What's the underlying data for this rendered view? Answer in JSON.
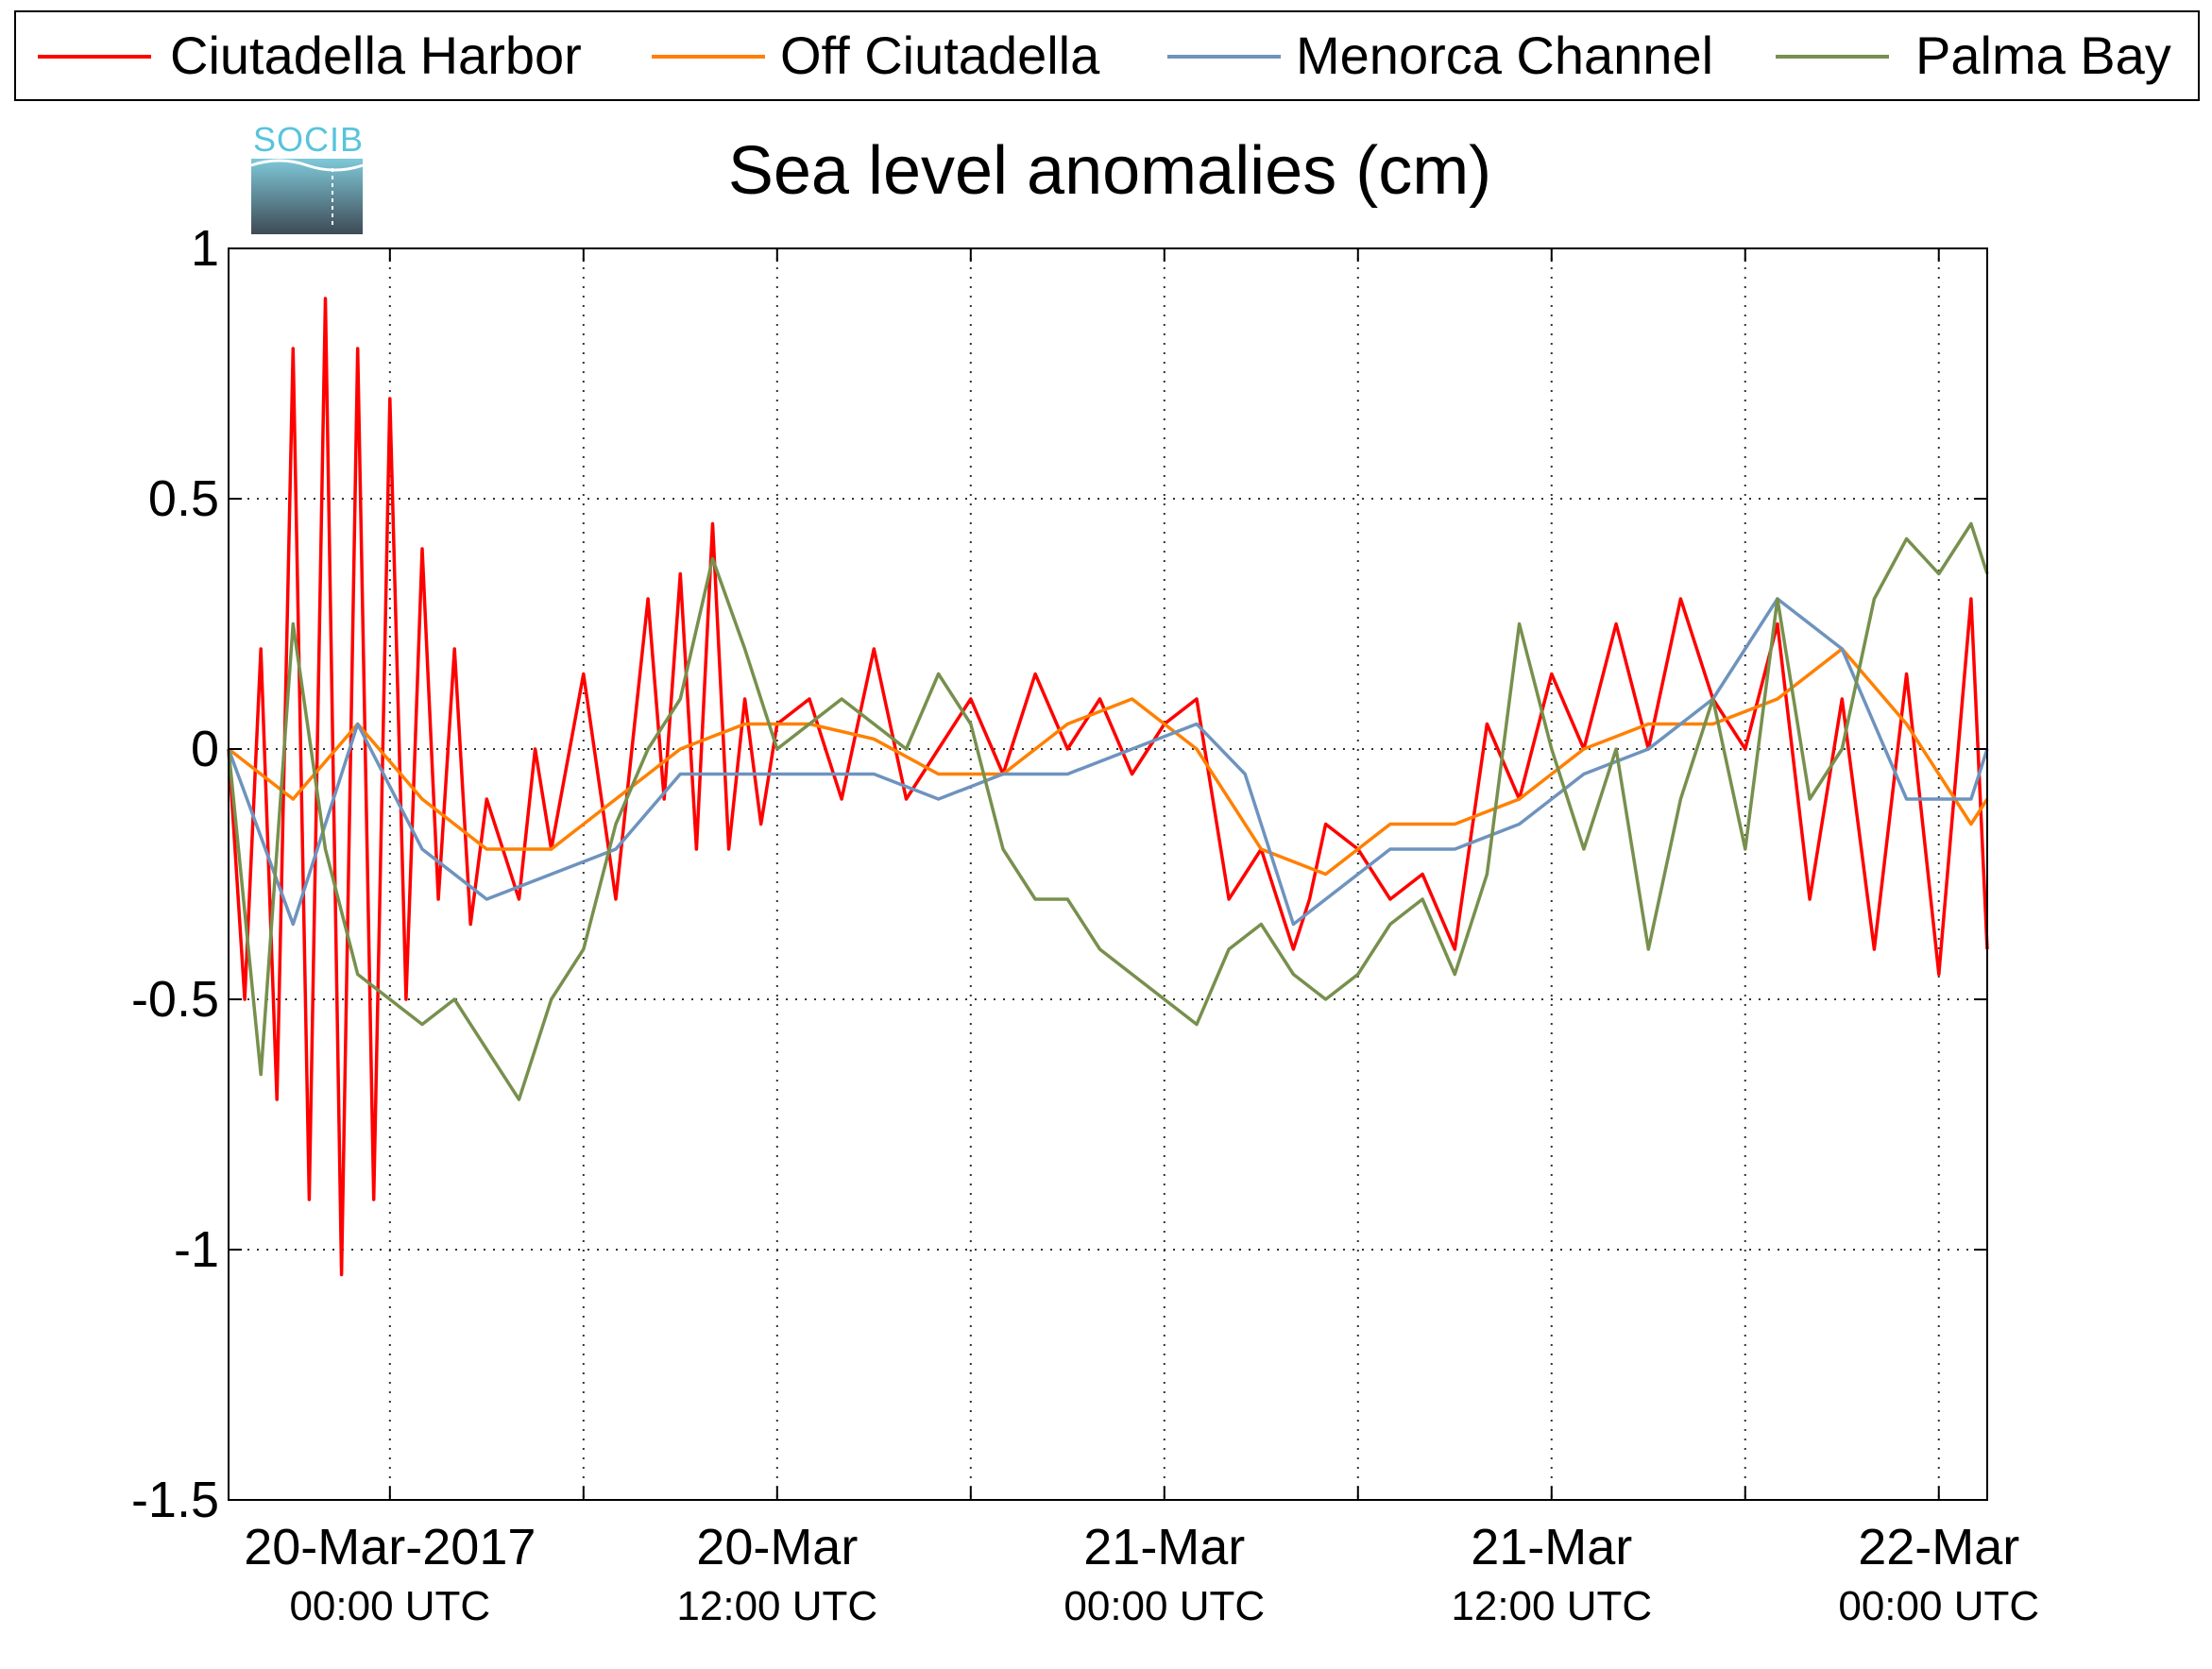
{
  "logo": {
    "text": "SOCIB"
  },
  "chart_data": {
    "type": "line",
    "title": "Sea level anomalies (cm)",
    "xlabel": "",
    "ylabel": "",
    "ylim": [
      -1.5,
      1
    ],
    "xlim": [
      "2017-03-19T19:00",
      "2017-03-22T01:30"
    ],
    "grid": true,
    "legend_position": "top",
    "y_ticks": [
      "1",
      "0.5",
      "0",
      "-0.5",
      "-1",
      "-1.5"
    ],
    "x_tick_labels": [
      {
        "at": "2017-03-20T00:00",
        "line1": "20-Mar-2017",
        "line2": "00:00 UTC"
      },
      {
        "at": "2017-03-20T12:00",
        "line1": "20-Mar",
        "line2": "12:00 UTC"
      },
      {
        "at": "2017-03-21T00:00",
        "line1": "21-Mar",
        "line2": "00:00 UTC"
      },
      {
        "at": "2017-03-21T12:00",
        "line1": "21-Mar",
        "line2": "12:00 UTC"
      },
      {
        "at": "2017-03-22T00:00",
        "line1": "22-Mar",
        "line2": "00:00 UTC"
      }
    ],
    "x_minor_ticks": [
      "2017-03-20T06:00",
      "2017-03-20T18:00",
      "2017-03-21T06:00",
      "2017-03-21T18:00"
    ],
    "series": [
      {
        "name": "Ciutadella Harbor",
        "color": "#ff0000",
        "x": [
          "2017-03-19T19:00",
          "2017-03-19T19:30",
          "2017-03-19T20:00",
          "2017-03-19T20:30",
          "2017-03-19T21:00",
          "2017-03-19T21:30",
          "2017-03-19T22:00",
          "2017-03-19T22:30",
          "2017-03-19T23:00",
          "2017-03-19T23:30",
          "2017-03-20T00:00",
          "2017-03-20T00:30",
          "2017-03-20T01:00",
          "2017-03-20T01:30",
          "2017-03-20T02:00",
          "2017-03-20T02:30",
          "2017-03-20T03:00",
          "2017-03-20T03:30",
          "2017-03-20T04:00",
          "2017-03-20T04:30",
          "2017-03-20T05:00",
          "2017-03-20T06:00",
          "2017-03-20T07:00",
          "2017-03-20T08:00",
          "2017-03-20T08:30",
          "2017-03-20T09:00",
          "2017-03-20T09:30",
          "2017-03-20T10:00",
          "2017-03-20T10:30",
          "2017-03-20T11:00",
          "2017-03-20T11:30",
          "2017-03-20T12:00",
          "2017-03-20T13:00",
          "2017-03-20T14:00",
          "2017-03-20T15:00",
          "2017-03-20T16:00",
          "2017-03-20T17:00",
          "2017-03-20T18:00",
          "2017-03-20T19:00",
          "2017-03-20T20:00",
          "2017-03-20T21:00",
          "2017-03-20T22:00",
          "2017-03-20T23:00",
          "2017-03-21T00:00",
          "2017-03-21T01:00",
          "2017-03-21T02:00",
          "2017-03-21T03:00",
          "2017-03-21T04:00",
          "2017-03-21T04:30",
          "2017-03-21T05:00",
          "2017-03-21T06:00",
          "2017-03-21T07:00",
          "2017-03-21T08:00",
          "2017-03-21T09:00",
          "2017-03-21T10:00",
          "2017-03-21T11:00",
          "2017-03-21T12:00",
          "2017-03-21T13:00",
          "2017-03-21T14:00",
          "2017-03-21T15:00",
          "2017-03-21T16:00",
          "2017-03-21T17:00",
          "2017-03-21T18:00",
          "2017-03-21T19:00",
          "2017-03-21T20:00",
          "2017-03-21T21:00",
          "2017-03-21T22:00",
          "2017-03-21T23:00",
          "2017-03-22T00:00",
          "2017-03-22T01:00",
          "2017-03-22T01:30"
        ],
        "y": [
          0.0,
          -0.5,
          0.2,
          -0.7,
          0.8,
          -0.9,
          0.9,
          -1.05,
          0.8,
          -0.9,
          0.7,
          -0.5,
          0.4,
          -0.3,
          0.2,
          -0.35,
          -0.1,
          -0.2,
          -0.3,
          0.0,
          -0.2,
          0.15,
          -0.3,
          0.3,
          -0.1,
          0.35,
          -0.2,
          0.45,
          -0.2,
          0.1,
          -0.15,
          0.05,
          0.1,
          -0.1,
          0.2,
          -0.1,
          0.0,
          0.1,
          -0.05,
          0.15,
          0.0,
          0.1,
          -0.05,
          0.05,
          0.1,
          -0.3,
          -0.2,
          -0.4,
          -0.3,
          -0.15,
          -0.2,
          -0.3,
          -0.25,
          -0.4,
          0.05,
          -0.1,
          0.15,
          0.0,
          0.25,
          0.0,
          0.3,
          0.1,
          0.0,
          0.25,
          -0.3,
          0.1,
          -0.4,
          0.15,
          -0.45,
          0.3,
          -0.4
        ]
      },
      {
        "name": "Off Ciutadella",
        "color": "#ff8000",
        "x": [
          "2017-03-19T19:00",
          "2017-03-19T21:00",
          "2017-03-19T23:00",
          "2017-03-20T01:00",
          "2017-03-20T03:00",
          "2017-03-20T05:00",
          "2017-03-20T07:00",
          "2017-03-20T09:00",
          "2017-03-20T11:00",
          "2017-03-20T13:00",
          "2017-03-20T15:00",
          "2017-03-20T17:00",
          "2017-03-20T19:00",
          "2017-03-20T21:00",
          "2017-03-20T23:00",
          "2017-03-21T01:00",
          "2017-03-21T03:00",
          "2017-03-21T05:00",
          "2017-03-21T07:00",
          "2017-03-21T09:00",
          "2017-03-21T11:00",
          "2017-03-21T13:00",
          "2017-03-21T15:00",
          "2017-03-21T17:00",
          "2017-03-21T19:00",
          "2017-03-21T21:00",
          "2017-03-21T23:00",
          "2017-03-22T01:00",
          "2017-03-22T01:30"
        ],
        "y": [
          0.0,
          -0.1,
          0.05,
          -0.1,
          -0.2,
          -0.2,
          -0.1,
          0.0,
          0.05,
          0.05,
          0.02,
          -0.05,
          -0.05,
          0.05,
          0.1,
          0.0,
          -0.2,
          -0.25,
          -0.15,
          -0.15,
          -0.1,
          0.0,
          0.05,
          0.05,
          0.1,
          0.2,
          0.05,
          -0.15,
          -0.1
        ]
      },
      {
        "name": "Menorca Channel",
        "color": "#6e93be",
        "x": [
          "2017-03-19T19:00",
          "2017-03-19T21:00",
          "2017-03-19T23:00",
          "2017-03-20T01:00",
          "2017-03-20T03:00",
          "2017-03-20T05:00",
          "2017-03-20T07:00",
          "2017-03-20T09:00",
          "2017-03-20T11:00",
          "2017-03-20T13:00",
          "2017-03-20T15:00",
          "2017-03-20T17:00",
          "2017-03-20T19:00",
          "2017-03-20T21:00",
          "2017-03-20T23:00",
          "2017-03-21T01:00",
          "2017-03-21T02:30",
          "2017-03-21T04:00",
          "2017-03-21T05:00",
          "2017-03-21T07:00",
          "2017-03-21T09:00",
          "2017-03-21T11:00",
          "2017-03-21T13:00",
          "2017-03-21T15:00",
          "2017-03-21T17:00",
          "2017-03-21T19:00",
          "2017-03-21T21:00",
          "2017-03-21T23:00",
          "2017-03-22T01:00",
          "2017-03-22T01:30"
        ],
        "y": [
          0.0,
          -0.35,
          0.05,
          -0.2,
          -0.3,
          -0.25,
          -0.2,
          -0.05,
          -0.05,
          -0.05,
          -0.05,
          -0.1,
          -0.05,
          -0.05,
          0.0,
          0.05,
          -0.05,
          -0.35,
          -0.3,
          -0.2,
          -0.2,
          -0.15,
          -0.05,
          0.0,
          0.1,
          0.3,
          0.2,
          -0.1,
          -0.1,
          0.0
        ]
      },
      {
        "name": "Palma Bay",
        "color": "#77904d",
        "x": [
          "2017-03-19T19:00",
          "2017-03-19T20:00",
          "2017-03-19T21:00",
          "2017-03-19T22:00",
          "2017-03-19T23:00",
          "2017-03-20T00:00",
          "2017-03-20T01:00",
          "2017-03-20T02:00",
          "2017-03-20T03:00",
          "2017-03-20T04:00",
          "2017-03-20T05:00",
          "2017-03-20T06:00",
          "2017-03-20T07:00",
          "2017-03-20T08:00",
          "2017-03-20T09:00",
          "2017-03-20T10:00",
          "2017-03-20T11:00",
          "2017-03-20T12:00",
          "2017-03-20T13:00",
          "2017-03-20T14:00",
          "2017-03-20T15:00",
          "2017-03-20T16:00",
          "2017-03-20T17:00",
          "2017-03-20T18:00",
          "2017-03-20T19:00",
          "2017-03-20T20:00",
          "2017-03-20T21:00",
          "2017-03-20T22:00",
          "2017-03-20T23:00",
          "2017-03-21T00:00",
          "2017-03-21T01:00",
          "2017-03-21T02:00",
          "2017-03-21T03:00",
          "2017-03-21T04:00",
          "2017-03-21T05:00",
          "2017-03-21T06:00",
          "2017-03-21T07:00",
          "2017-03-21T08:00",
          "2017-03-21T09:00",
          "2017-03-21T10:00",
          "2017-03-21T11:00",
          "2017-03-21T12:00",
          "2017-03-21T13:00",
          "2017-03-21T14:00",
          "2017-03-21T15:00",
          "2017-03-21T16:00",
          "2017-03-21T17:00",
          "2017-03-21T18:00",
          "2017-03-21T19:00",
          "2017-03-21T20:00",
          "2017-03-21T21:00",
          "2017-03-21T22:00",
          "2017-03-21T23:00",
          "2017-03-22T00:00",
          "2017-03-22T01:00",
          "2017-03-22T01:30"
        ],
        "y": [
          0.0,
          -0.65,
          0.25,
          -0.2,
          -0.45,
          -0.5,
          -0.55,
          -0.5,
          -0.6,
          -0.7,
          -0.5,
          -0.4,
          -0.15,
          0.0,
          0.1,
          0.38,
          0.2,
          0.0,
          0.05,
          0.1,
          0.05,
          0.0,
          0.15,
          0.05,
          -0.2,
          -0.3,
          -0.3,
          -0.4,
          -0.45,
          -0.5,
          -0.55,
          -0.4,
          -0.35,
          -0.45,
          -0.5,
          -0.45,
          -0.35,
          -0.3,
          -0.45,
          -0.25,
          0.25,
          0.0,
          -0.2,
          0.0,
          -0.4,
          -0.1,
          0.1,
          -0.2,
          0.3,
          -0.1,
          0.0,
          0.3,
          0.42,
          0.35,
          0.45,
          0.35
        ]
      }
    ]
  }
}
